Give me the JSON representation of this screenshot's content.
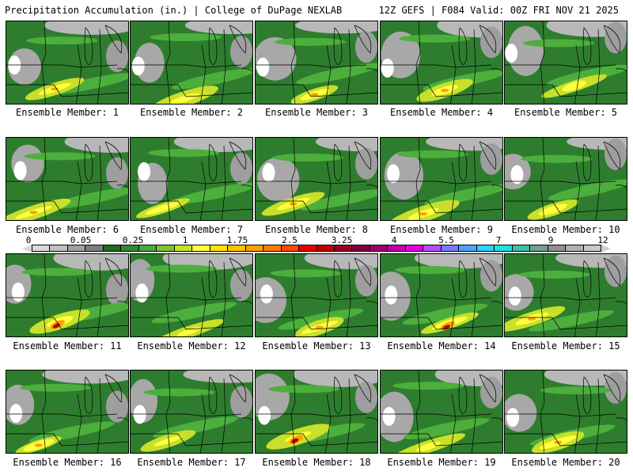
{
  "header": {
    "title": "Precipitation Accumulation (in.) | College of DuPage NEXLAB",
    "run": "12Z GEFS | F084 Valid: 00Z FRI NOV 21 2025"
  },
  "panels": [
    {
      "caption": "Ensemble Member: 1"
    },
    {
      "caption": "Ensemble Member: 2"
    },
    {
      "caption": "Ensemble Member: 3"
    },
    {
      "caption": "Ensemble Member: 4"
    },
    {
      "caption": "Ensemble Member: 5"
    },
    {
      "caption": "Ensemble Member: 6"
    },
    {
      "caption": "Ensemble Member: 7"
    },
    {
      "caption": "Ensemble Member: 8"
    },
    {
      "caption": "Ensemble Member: 9"
    },
    {
      "caption": "Ensemble Member: 10"
    },
    {
      "caption": "Ensemble Member: 11"
    },
    {
      "caption": "Ensemble Member: 12"
    },
    {
      "caption": "Ensemble Member: 13"
    },
    {
      "caption": "Ensemble Member: 14"
    },
    {
      "caption": "Ensemble Member: 15"
    },
    {
      "caption": "Ensemble Member: 16"
    },
    {
      "caption": "Ensemble Member: 17"
    },
    {
      "caption": "Ensemble Member: 18"
    },
    {
      "caption": "Ensemble Member: 19"
    },
    {
      "caption": "Ensemble Member: 20"
    }
  ],
  "colorbar": {
    "labels": [
      "0",
      "0.05",
      "0.25",
      "1",
      "1.75",
      "2.5",
      "3.25",
      "4",
      "5.5",
      "7",
      "9",
      "12"
    ],
    "colors": [
      "#d9d9d9",
      "#bfbfbf",
      "#a0a0a0",
      "#7d7d7d",
      "#1f6b1f",
      "#2e8b2e",
      "#45a845",
      "#7fc22e",
      "#c8e02a",
      "#ffff40",
      "#ffe000",
      "#ffc000",
      "#ffa000",
      "#ff7a00",
      "#ff4a00",
      "#e60000",
      "#c00000",
      "#990020",
      "#800040",
      "#9a0066",
      "#c000a0",
      "#e000e0",
      "#b050ff",
      "#7a7aff",
      "#50a0ff",
      "#30d0ff",
      "#20e0e0",
      "#40c0a0",
      "#70a090",
      "#909090",
      "#b0b0b0",
      "#c8c8c8"
    ]
  },
  "colors": {
    "land_green": "#2e7d2e",
    "light_green": "#4caf3c",
    "yellow": "#ffff40",
    "orange": "#ffa000",
    "red": "#e60000",
    "gray": "#9e9e9e"
  }
}
